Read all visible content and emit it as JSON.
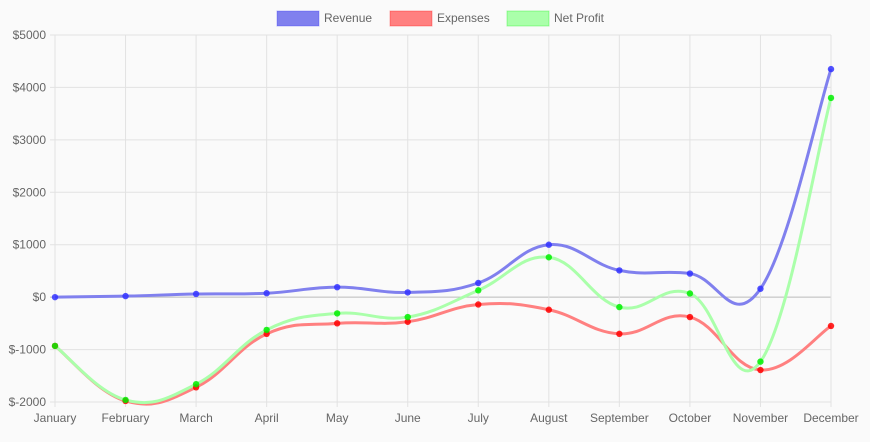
{
  "chart_data": {
    "type": "line",
    "categories": [
      "January",
      "February",
      "March",
      "April",
      "May",
      "June",
      "July",
      "August",
      "September",
      "October",
      "November",
      "December"
    ],
    "series": [
      {
        "name": "Revenue",
        "color": "#8080ee",
        "point_color": "#3333ff",
        "values": [
          0,
          20,
          60,
          75,
          190,
          90,
          270,
          1000,
          510,
          450,
          160,
          4350
        ]
      },
      {
        "name": "Expenses",
        "color": "#ff8080",
        "point_color": "#ff0000",
        "values": [
          -930,
          -1980,
          -1720,
          -700,
          -500,
          -470,
          -140,
          -240,
          -700,
          -380,
          -1390,
          -550
        ]
      },
      {
        "name": "Net Profit",
        "color": "#aaffaa",
        "point_color": "#00ee00",
        "values": [
          -930,
          -1960,
          -1660,
          -625,
          -310,
          -380,
          130,
          760,
          -190,
          70,
          -1230,
          3800
        ]
      }
    ],
    "y_ticks": [
      "$5000",
      "$4000",
      "$3000",
      "$2000",
      "$1000",
      "$0",
      "$-1000",
      "$-2000"
    ],
    "ylim": [
      -2000,
      5000
    ],
    "grid": true,
    "legend_position": "top-center",
    "title": "",
    "xlabel": "",
    "ylabel": ""
  }
}
